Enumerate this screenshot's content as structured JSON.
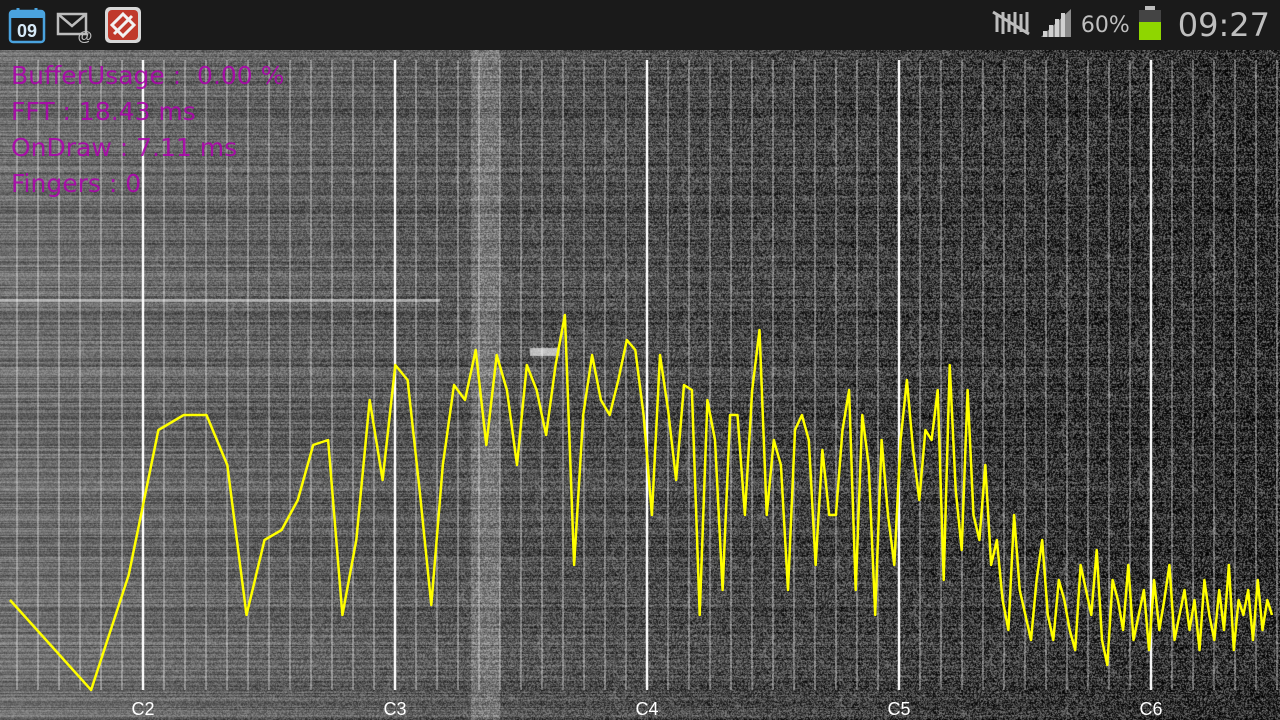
{
  "status_bar": {
    "notification_icons": [
      "calendar-icon",
      "email-icon",
      "app-icon"
    ],
    "calendar_day": "09",
    "system_icons": [
      "mute-icon",
      "signal-icon",
      "battery-icon"
    ],
    "battery_percent": "60%",
    "battery_level": 0.6,
    "clock": "09:27"
  },
  "stats": {
    "buffer_usage": "BufferUsage :  0.00 %",
    "fft": "FFT : 18.43 ms",
    "ondraw": "OnDraw : 7.11 ms",
    "fingers": "Fingers : 0"
  },
  "colors": {
    "trace": "#ffff00",
    "stats_text": "#b000b0",
    "grid": "#ffffff"
  },
  "chart_data": {
    "type": "line",
    "x_axis": "musical note frequency (log scale)",
    "x_ticks": [
      "C2",
      "C3",
      "C4",
      "C5",
      "C6"
    ],
    "grid": true,
    "series": [
      {
        "values": [
          0.18,
          0.0,
          0.23,
          0.52,
          0.55,
          0.55,
          0.45,
          0.15,
          0.3,
          0.32,
          0.38,
          0.49,
          0.5,
          0.15,
          0.3,
          0.58,
          0.42,
          0.65,
          0.62,
          0.4,
          0.17,
          0.45,
          0.61,
          0.58,
          0.68,
          0.49,
          0.67,
          0.6,
          0.45,
          0.65,
          0.6,
          0.51,
          0.65,
          0.75,
          0.25,
          0.55,
          0.67,
          0.58,
          0.55,
          0.62,
          0.7,
          0.68,
          0.55,
          0.35,
          0.67,
          0.56,
          0.42,
          0.61,
          0.6,
          0.15,
          0.58,
          0.5,
          0.2,
          0.55,
          0.55,
          0.35,
          0.6,
          0.72,
          0.35,
          0.5,
          0.45,
          0.2,
          0.52,
          0.55,
          0.5,
          0.25,
          0.48,
          0.35,
          0.35,
          0.52,
          0.6,
          0.2,
          0.55,
          0.45,
          0.15,
          0.5,
          0.35,
          0.25,
          0.5,
          0.62,
          0.48,
          0.38,
          0.52,
          0.5,
          0.6,
          0.22,
          0.65,
          0.4,
          0.28,
          0.6,
          0.35,
          0.3,
          0.45,
          0.25,
          0.3,
          0.18,
          0.12,
          0.35,
          0.2,
          0.15,
          0.1,
          0.22,
          0.3,
          0.15,
          0.1,
          0.22,
          0.18,
          0.12,
          0.08,
          0.25,
          0.2,
          0.15,
          0.28,
          0.1,
          0.05,
          0.22,
          0.18,
          0.12,
          0.25,
          0.1,
          0.15,
          0.2,
          0.08,
          0.22,
          0.12,
          0.18,
          0.25,
          0.1,
          0.15,
          0.2,
          0.12,
          0.18,
          0.08,
          0.22,
          0.15,
          0.1,
          0.2,
          0.12,
          0.25,
          0.08,
          0.18,
          0.15,
          0.2,
          0.1,
          0.22,
          0.12,
          0.18,
          0.15
        ]
      }
    ]
  }
}
